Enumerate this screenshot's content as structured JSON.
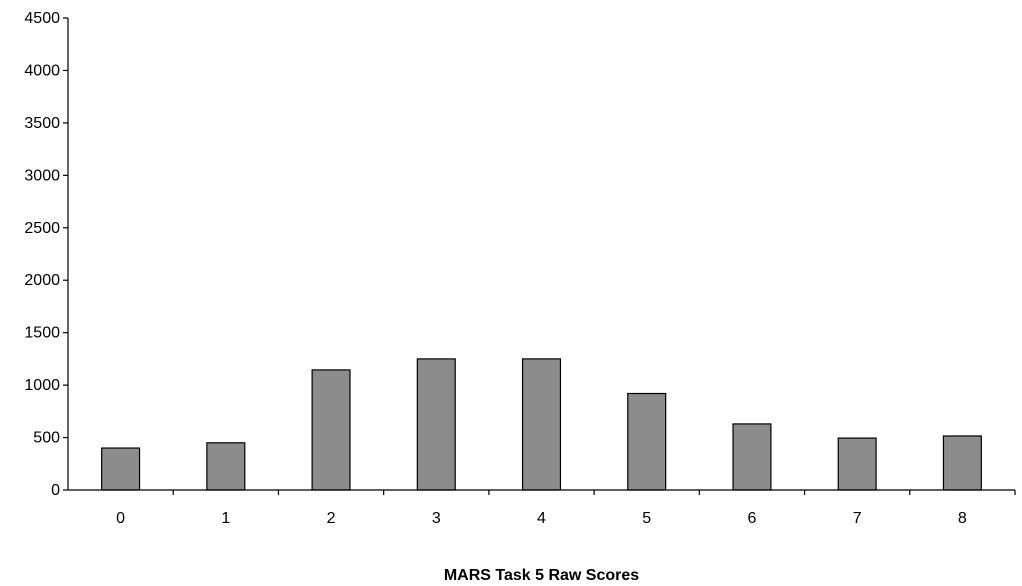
{
  "chart_data": {
    "type": "bar",
    "title": "",
    "xlabel": "MARS Task 5 Raw Scores",
    "ylabel": "",
    "categories": [
      "0",
      "1",
      "2",
      "3",
      "4",
      "5",
      "6",
      "7",
      "8"
    ],
    "values": [
      400,
      450,
      1145,
      1250,
      1250,
      920,
      630,
      495,
      515
    ],
    "ylim": [
      0,
      4500
    ],
    "yticks": [
      "0",
      "500",
      "1000",
      "1500",
      "2000",
      "2500",
      "3000",
      "3500",
      "4000",
      "4500"
    ],
    "grid": false,
    "legend": "none",
    "colors": {
      "bar_fill": "#8c8c8c",
      "bar_stroke": "#000000",
      "axis": "#000000"
    }
  }
}
